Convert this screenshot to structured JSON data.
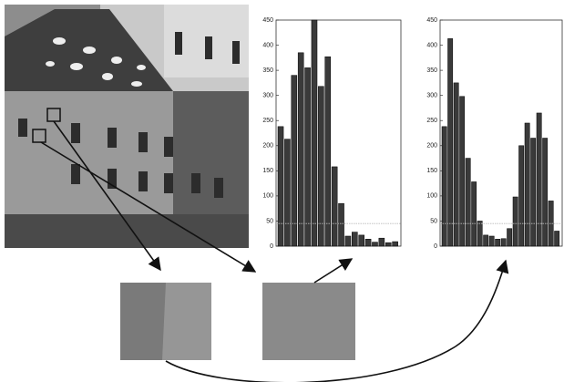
{
  "chart_data": [
    {
      "type": "bar",
      "categories": [
        null,
        null,
        null,
        null,
        null,
        null,
        null,
        null,
        null,
        null,
        null,
        null,
        null,
        null,
        null,
        null,
        null,
        null
      ],
      "values": [
        238,
        213,
        340,
        385,
        355,
        450,
        318,
        377,
        158,
        85,
        20,
        28,
        22,
        14,
        8,
        16,
        7,
        9
      ],
      "color": "#3a3a3a",
      "ylim": [
        0,
        450
      ],
      "yticks": [
        0,
        50,
        100,
        150,
        200,
        250,
        300,
        350,
        400,
        450
      ],
      "threshold": 45
    },
    {
      "type": "bar",
      "categories": [
        null,
        null,
        null,
        null,
        null,
        null,
        null,
        null,
        null,
        null,
        null,
        null,
        null,
        null,
        null,
        null,
        null,
        null,
        null,
        null
      ],
      "values": [
        238,
        413,
        325,
        298,
        175,
        128,
        50,
        22,
        20,
        14,
        15,
        35,
        98,
        200,
        245,
        215,
        265,
        215,
        90,
        30
      ],
      "color": "#3a3a3a",
      "ylim": [
        0,
        450
      ],
      "yticks": [
        0,
        50,
        100,
        150,
        200,
        250,
        300,
        350,
        400,
        450
      ],
      "threshold": 45
    }
  ]
}
